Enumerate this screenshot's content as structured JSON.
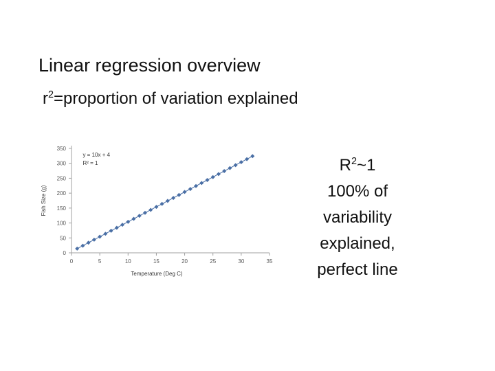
{
  "slide": {
    "title": "Linear regression overview",
    "subtitle_prefix": "r",
    "subtitle_sup": "2",
    "subtitle_rest": "=proportion of variation explained"
  },
  "callout": {
    "r_label": "R",
    "r_sup": "2",
    "r_rest": "~1",
    "lines": [
      "100% of",
      "variability",
      "explained,",
      "perfect line"
    ]
  },
  "chart_data": {
    "type": "scatter",
    "xlabel": "Temperature (Deg C)",
    "ylabel": "Fish Size (g)",
    "xlim": [
      0,
      35
    ],
    "ylim": [
      0,
      350
    ],
    "x_ticks": [
      0,
      5,
      10,
      15,
      20,
      25,
      30,
      35
    ],
    "y_ticks": [
      0,
      50,
      100,
      150,
      200,
      250,
      300,
      350
    ],
    "grid": false,
    "annotations": [
      "y = 10x + 4",
      "R² = 1"
    ],
    "series": [
      {
        "x": [
          1,
          2,
          3,
          4,
          5,
          6,
          7,
          8,
          9,
          10,
          11,
          12,
          13,
          14,
          15,
          16,
          17,
          18,
          19,
          20,
          21,
          22,
          23,
          24,
          25,
          26,
          27,
          28,
          29,
          30,
          31,
          32
        ],
        "y": [
          14,
          24,
          34,
          44,
          54,
          64,
          74,
          84,
          94,
          104,
          114,
          124,
          134,
          144,
          154,
          164,
          174,
          184,
          194,
          204,
          214,
          224,
          234,
          244,
          254,
          264,
          274,
          284,
          294,
          304,
          314,
          324
        ],
        "color": "#4a6fa5"
      }
    ]
  }
}
